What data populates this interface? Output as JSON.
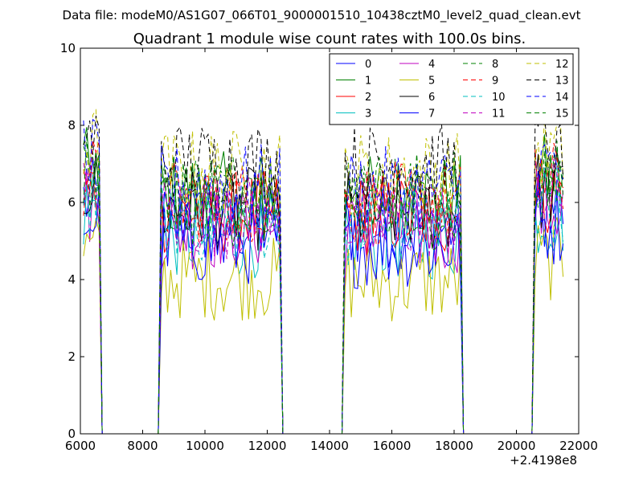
{
  "suptitle": "Data file: modeM0/AS1G07_066T01_9000001510_10438cztM0_level2_quad_clean.evt",
  "chart_data": {
    "type": "line",
    "title": "Quadrant 1 module wise count rates with 100.0s bins.",
    "xlabel": "",
    "ylabel": "",
    "xlim": [
      6000,
      22000
    ],
    "ylim": [
      0,
      10
    ],
    "x_offset_label": "+2.4198e8",
    "xticks": [
      6000,
      8000,
      10000,
      12000,
      14000,
      16000,
      18000,
      20000,
      22000
    ],
    "yticks": [
      0,
      2,
      4,
      6,
      8,
      10
    ],
    "legend_position": "top-right",
    "legend_columns": 4,
    "bin_seconds": 100,
    "segments": [
      {
        "start": 6100,
        "end": 6650,
        "level": 6.8
      },
      {
        "start": 8550,
        "end": 12450,
        "level": 5.9
      },
      {
        "start": 14450,
        "end": 18250,
        "level": 5.8
      },
      {
        "start": 20550,
        "end": 21500,
        "level": 6.6
      }
    ],
    "series": [
      {
        "name": "0",
        "color": "#0000ff",
        "style": "solid",
        "mean": 5.5
      },
      {
        "name": "1",
        "color": "#008000",
        "style": "solid",
        "mean": 6.3
      },
      {
        "name": "2",
        "color": "#ff0000",
        "style": "solid",
        "mean": 5.8
      },
      {
        "name": "3",
        "color": "#00bfbf",
        "style": "solid",
        "mean": 5.2
      },
      {
        "name": "4",
        "color": "#bf00bf",
        "style": "solid",
        "mean": 5.4
      },
      {
        "name": "5",
        "color": "#bfbf00",
        "style": "solid",
        "mean": 4.1
      },
      {
        "name": "6",
        "color": "#000000",
        "style": "solid",
        "mean": 5.9
      },
      {
        "name": "7",
        "color": "#0000ff",
        "style": "solid",
        "mean": 5.0
      },
      {
        "name": "8",
        "color": "#008000",
        "style": "dashed",
        "mean": 6.4
      },
      {
        "name": "9",
        "color": "#ff0000",
        "style": "dashed",
        "mean": 6.1
      },
      {
        "name": "10",
        "color": "#00bfbf",
        "style": "dashed",
        "mean": 5.6
      },
      {
        "name": "11",
        "color": "#bf00bf",
        "style": "dashed",
        "mean": 5.7
      },
      {
        "name": "12",
        "color": "#bfbf00",
        "style": "dashed",
        "mean": 6.9
      },
      {
        "name": "13",
        "color": "#000000",
        "style": "dashed",
        "mean": 7.1
      },
      {
        "name": "14",
        "color": "#0000ff",
        "style": "dashed",
        "mean": 6.5
      },
      {
        "name": "15",
        "color": "#008000",
        "style": "dashed",
        "mean": 6.0
      }
    ]
  }
}
